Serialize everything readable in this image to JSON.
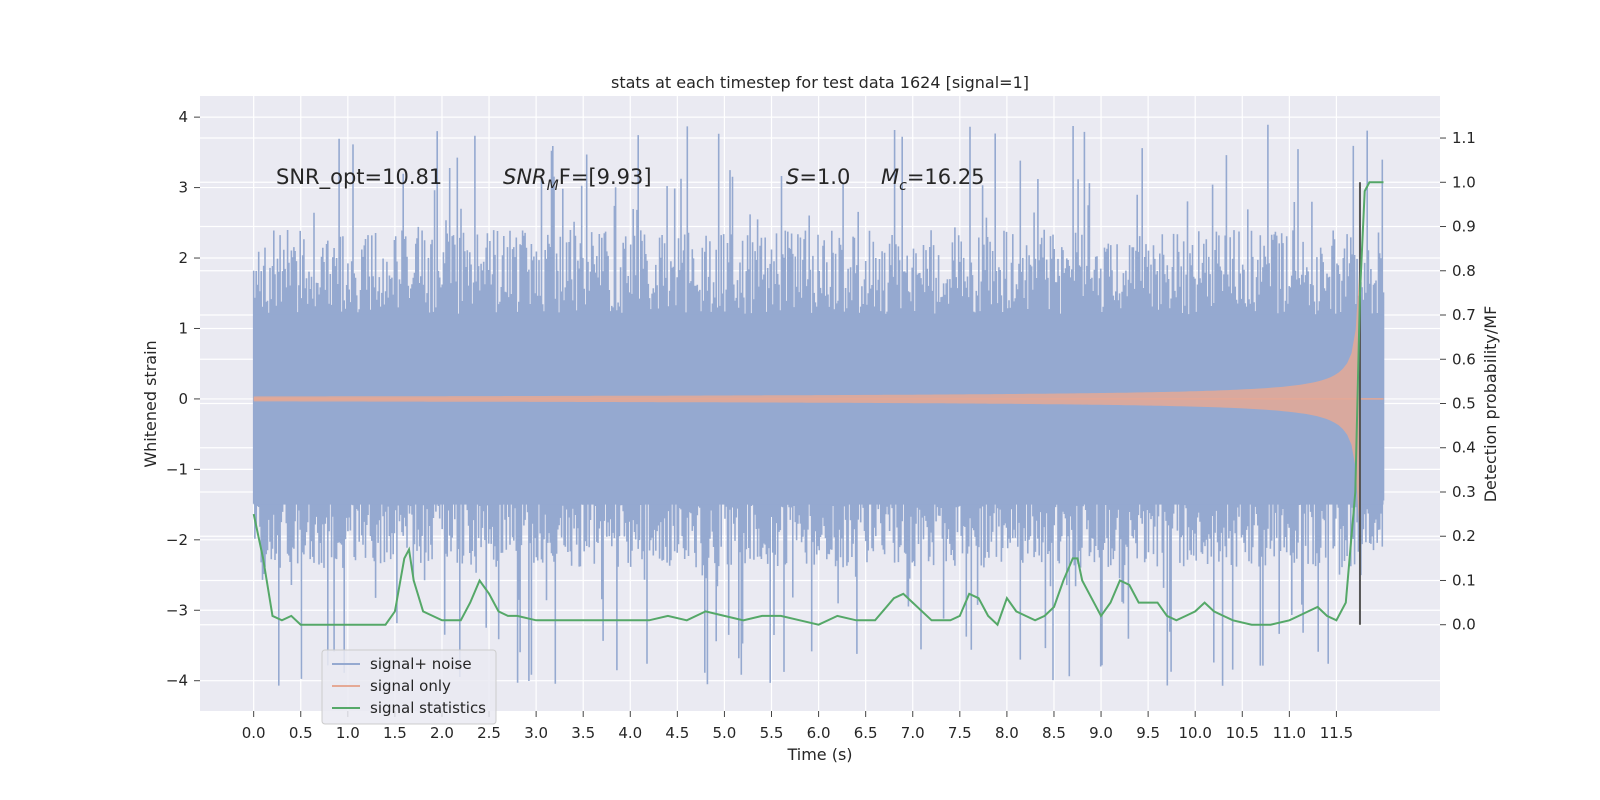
{
  "chart_data": {
    "type": "line",
    "title": "stats at each timestep for test data 1624 [signal=1]",
    "xlabel": "Time (s)",
    "ylabel": "Whitened strain",
    "y2label": "Detection probability/MF",
    "xlim": [
      -0.57,
      12.6
    ],
    "ylim": [
      -4.43,
      4.3
    ],
    "y2lim": [
      -0.195,
      1.195
    ],
    "xticks": [
      "0.0",
      "0.5",
      "1.0",
      "1.5",
      "2.0",
      "2.5",
      "3.0",
      "3.5",
      "4.0",
      "4.5",
      "5.0",
      "5.5",
      "6.0",
      "6.5",
      "7.0",
      "7.5",
      "8.0",
      "8.5",
      "9.0",
      "9.5",
      "10.0",
      "10.5",
      "11.0",
      "11.5"
    ],
    "yticks": [
      "4",
      "3",
      "2",
      "1",
      "0",
      "−1",
      "−2",
      "−3",
      "−4"
    ],
    "y2ticks": [
      "1.1",
      "1.0",
      "0.9",
      "0.8",
      "0.7",
      "0.6",
      "0.5",
      "0.4",
      "0.3",
      "0.2",
      "0.1",
      "0.0"
    ],
    "grid": true,
    "legend_position": "lower-left",
    "annotations": {
      "snr_opt": "SNR_opt=10.81",
      "snr_mf_base": "SNR",
      "snr_mf_sub": "M",
      "snr_mf_rest": "F=[9.93]",
      "s_var": "S",
      "s_rest": "=1.0",
      "mc_var": "M",
      "mc_sub": "c",
      "mc_rest": "=16.25"
    },
    "marker_line": {
      "x": 11.75,
      "y2_from": 0.0,
      "y2_to": 1.0,
      "color": "#555555"
    },
    "series": [
      {
        "name": "signal+ noise",
        "color": "#95a9d0",
        "kind": "noise",
        "t_range": [
          0.0,
          12.0
        ],
        "envelope": [
          1.2,
          -1.5
        ],
        "spike_max": 3.9,
        "spike_min": -4.1
      },
      {
        "name": "signal only",
        "color": "#e5a995",
        "kind": "chirp",
        "t_range": [
          0.0,
          12.0
        ],
        "merger_time": 11.75,
        "peak_amplitude": 2.0
      },
      {
        "name": "signal statistics",
        "color": "#55a868",
        "axis": "right",
        "x": [
          0.0,
          0.1,
          0.2,
          0.3,
          0.4,
          0.5,
          0.6,
          0.8,
          1.0,
          1.2,
          1.4,
          1.5,
          1.6,
          1.65,
          1.7,
          1.8,
          1.9,
          2.0,
          2.2,
          2.3,
          2.4,
          2.5,
          2.6,
          2.7,
          2.8,
          3.0,
          3.2,
          3.5,
          3.8,
          4.0,
          4.2,
          4.4,
          4.6,
          4.8,
          5.0,
          5.2,
          5.4,
          5.6,
          5.8,
          6.0,
          6.2,
          6.4,
          6.6,
          6.8,
          6.9,
          7.0,
          7.2,
          7.4,
          7.5,
          7.6,
          7.7,
          7.8,
          7.9,
          8.0,
          8.1,
          8.2,
          8.3,
          8.4,
          8.5,
          8.6,
          8.7,
          8.75,
          8.8,
          8.9,
          9.0,
          9.1,
          9.2,
          9.3,
          9.4,
          9.5,
          9.6,
          9.7,
          9.8,
          9.9,
          10.0,
          10.1,
          10.2,
          10.3,
          10.4,
          10.6,
          10.8,
          11.0,
          11.1,
          11.2,
          11.3,
          11.4,
          11.5,
          11.6,
          11.7,
          11.75,
          11.8,
          11.85,
          11.9,
          11.95,
          12.0
        ],
        "y": [
          0.25,
          0.15,
          0.02,
          0.01,
          0.02,
          0.0,
          0.0,
          0.0,
          0.0,
          0.0,
          0.0,
          0.03,
          0.15,
          0.17,
          0.1,
          0.03,
          0.02,
          0.01,
          0.01,
          0.05,
          0.1,
          0.07,
          0.03,
          0.02,
          0.02,
          0.01,
          0.01,
          0.01,
          0.01,
          0.01,
          0.01,
          0.02,
          0.01,
          0.03,
          0.02,
          0.01,
          0.02,
          0.02,
          0.01,
          0.0,
          0.02,
          0.01,
          0.01,
          0.06,
          0.07,
          0.05,
          0.01,
          0.01,
          0.02,
          0.07,
          0.06,
          0.02,
          0.0,
          0.06,
          0.03,
          0.02,
          0.01,
          0.02,
          0.04,
          0.1,
          0.15,
          0.15,
          0.1,
          0.06,
          0.02,
          0.05,
          0.1,
          0.09,
          0.05,
          0.05,
          0.05,
          0.02,
          0.01,
          0.02,
          0.03,
          0.05,
          0.03,
          0.02,
          0.01,
          0.0,
          0.0,
          0.01,
          0.02,
          0.03,
          0.04,
          0.02,
          0.01,
          0.05,
          0.3,
          0.75,
          0.98,
          1.0,
          1.0,
          1.0,
          1.0
        ]
      }
    ]
  }
}
